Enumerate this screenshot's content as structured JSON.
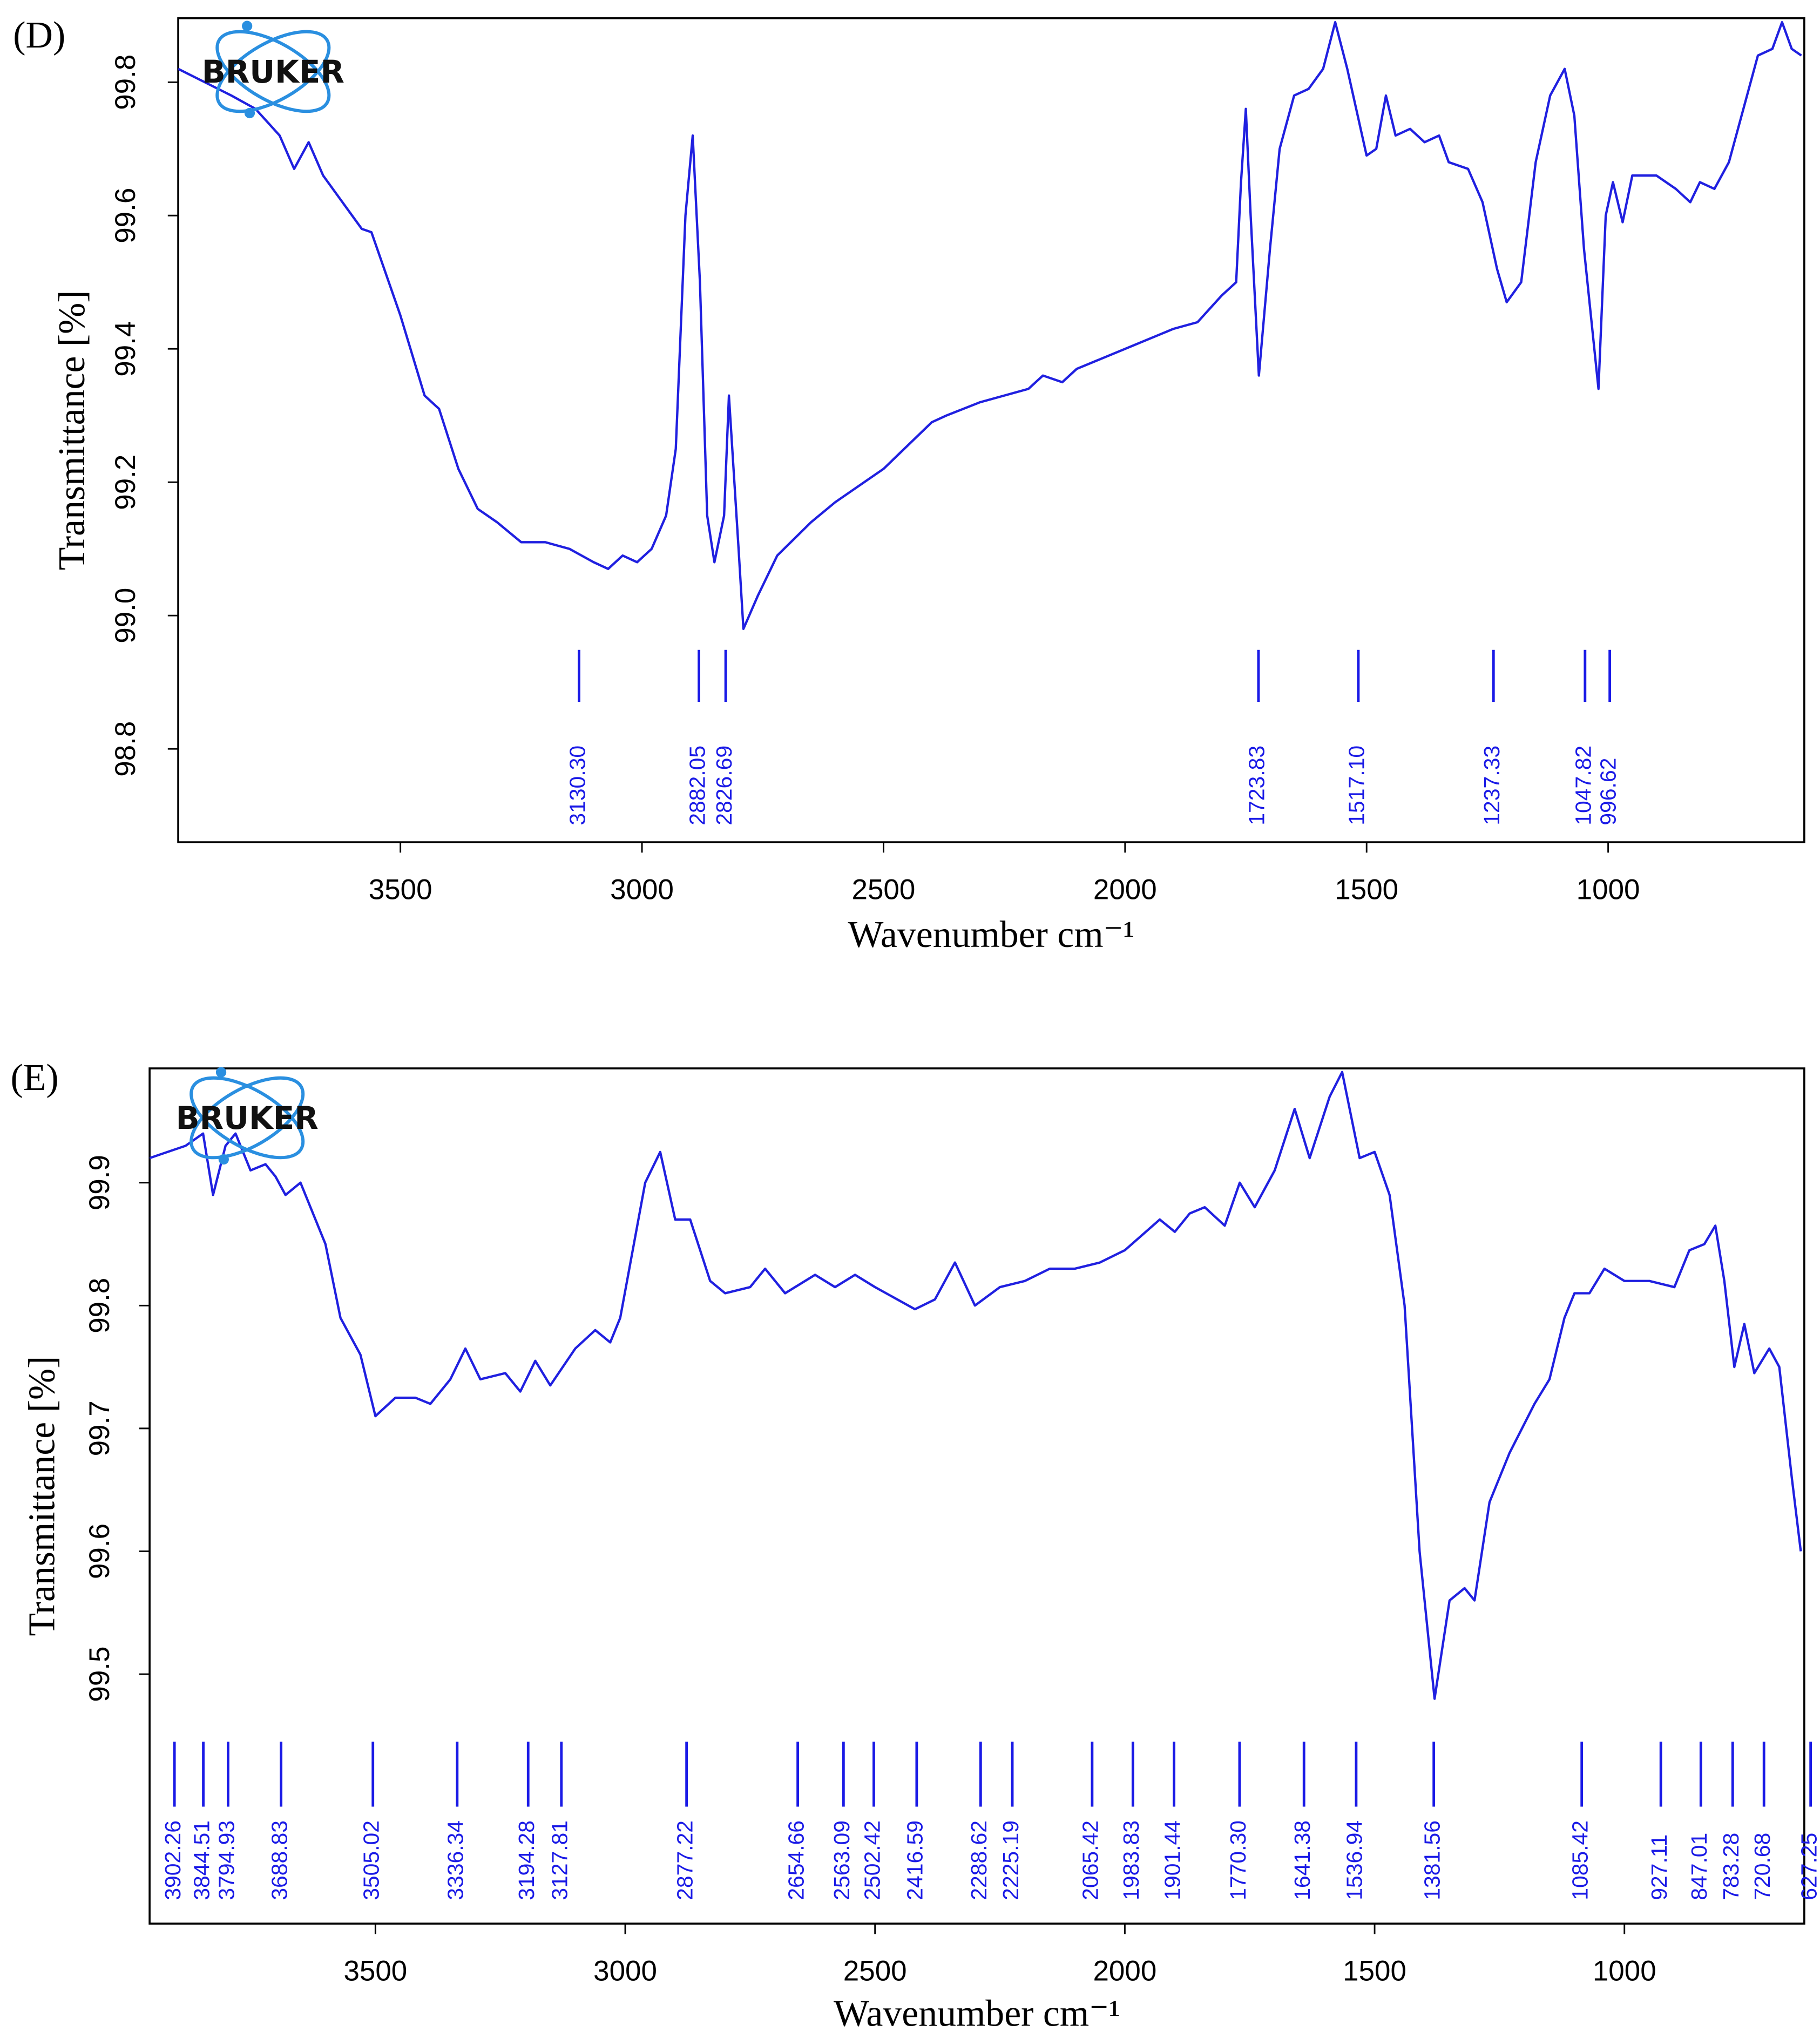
{
  "chart_data": [
    {
      "type": "line",
      "panel": "(D)",
      "logo_text": "BRUKER",
      "ylabel": "Transmittance [%]",
      "xlabel": "Wavenumber cm⁻¹",
      "xlim": [
        3960,
        594
      ],
      "ylim": [
        98.66,
        99.896
      ],
      "xticks": [
        3500,
        3000,
        2500,
        2000,
        1500,
        1000
      ],
      "yticks": [
        98.8,
        {
          "value": 99,
          "label": "99.0"
        },
        99.2,
        99.4,
        99.6,
        99.8
      ],
      "series": [
        {
          "color": "#2020e0",
          "x": [
            3960,
            3850,
            3800,
            3750,
            3720,
            3690,
            3660,
            3620,
            3580,
            3560,
            3500,
            3450,
            3420,
            3380,
            3340,
            3300,
            3250,
            3200,
            3150,
            3100,
            3070,
            3040,
            3010,
            2980,
            2950,
            2930,
            2910,
            2895,
            2880,
            2865,
            2850,
            2830,
            2820,
            2800,
            2790,
            2760,
            2720,
            2650,
            2600,
            2500,
            2400,
            2370,
            2300,
            2200,
            2170,
            2130,
            2100,
            2000,
            1900,
            1850,
            1800,
            1770,
            1760,
            1750,
            1740,
            1723,
            1700,
            1680,
            1650,
            1620,
            1590,
            1565,
            1540,
            1500,
            1480,
            1460,
            1440,
            1410,
            1380,
            1350,
            1330,
            1290,
            1260,
            1230,
            1210,
            1180,
            1150,
            1120,
            1090,
            1070,
            1050,
            1020,
            1005,
            990,
            970,
            950,
            900,
            860,
            830,
            810,
            780,
            750,
            720,
            690,
            660,
            640,
            620,
            600
          ],
          "values": [
            99.82,
            99.78,
            99.76,
            99.72,
            99.67,
            99.71,
            99.66,
            99.62,
            99.58,
            99.575,
            99.45,
            99.33,
            99.31,
            99.22,
            99.16,
            99.14,
            99.11,
            99.11,
            99.1,
            99.08,
            99.07,
            99.09,
            99.08,
            99.1,
            99.15,
            99.25,
            99.6,
            99.72,
            99.5,
            99.15,
            99.08,
            99.15,
            99.33,
            99.1,
            98.98,
            99.03,
            99.09,
            99.14,
            99.17,
            99.22,
            99.29,
            99.3,
            99.32,
            99.34,
            99.36,
            99.35,
            99.37,
            99.4,
            99.43,
            99.44,
            99.48,
            99.5,
            99.65,
            99.76,
            99.6,
            99.36,
            99.55,
            99.7,
            99.78,
            99.79,
            99.82,
            99.89,
            99.82,
            99.69,
            99.7,
            99.78,
            99.72,
            99.73,
            99.71,
            99.72,
            99.68,
            99.67,
            99.62,
            99.52,
            99.47,
            99.5,
            99.68,
            99.78,
            99.82,
            99.75,
            99.55,
            99.34,
            99.6,
            99.65,
            99.59,
            99.66,
            99.66,
            99.64,
            99.62,
            99.65,
            99.64,
            99.68,
            99.76,
            99.84,
            99.85,
            99.89,
            99.85,
            99.84
          ]
        }
      ],
      "peaks": [
        {
          "value": 3130.3,
          "label": "3130.30"
        },
        {
          "value": 2882.05,
          "label": "2882.05"
        },
        {
          "value": 2826.69,
          "label": "2826.69"
        },
        {
          "value": 1723.83,
          "label": "1723.83"
        },
        {
          "value": 1517.1,
          "label": "1517.10"
        },
        {
          "value": 1237.33,
          "label": "1237.33"
        },
        {
          "value": 1047.82,
          "label": "1047.82"
        },
        {
          "value": 996.62,
          "label": "996.62"
        }
      ]
    },
    {
      "type": "line",
      "panel": "(E)",
      "logo_text": "BRUKER",
      "ylabel": "Transmittance [%]",
      "xlabel": "Wavenumber cm⁻¹",
      "xlim": [
        3952,
        640
      ],
      "ylim": [
        99.297,
        99.993
      ],
      "xticks": [
        3500,
        3000,
        2500,
        2000,
        1500,
        1000
      ],
      "yticks": [
        99.5,
        99.6,
        99.7,
        99.8,
        99.9
      ],
      "series": [
        {
          "color": "#2020e0",
          "x": [
            3952,
            3880,
            3845,
            3825,
            3800,
            3780,
            3750,
            3720,
            3700,
            3680,
            3650,
            3600,
            3570,
            3530,
            3500,
            3460,
            3420,
            3390,
            3350,
            3320,
            3290,
            3240,
            3210,
            3180,
            3150,
            3100,
            3060,
            3030,
            3010,
            2960,
            2930,
            2900,
            2870,
            2830,
            2800,
            2750,
            2720,
            2680,
            2620,
            2580,
            2540,
            2500,
            2420,
            2380,
            2340,
            2300,
            2250,
            2200,
            2150,
            2100,
            2050,
            2000,
            1930,
            1900,
            1870,
            1840,
            1800,
            1770,
            1740,
            1700,
            1660,
            1630,
            1590,
            1565,
            1530,
            1500,
            1470,
            1440,
            1410,
            1380,
            1350,
            1320,
            1300,
            1270,
            1230,
            1180,
            1150,
            1120,
            1100,
            1070,
            1040,
            1000,
            950,
            900,
            870,
            840,
            818,
            800,
            780,
            760,
            740,
            710,
            690,
            665,
            647
          ],
          "values": [
            99.92,
            99.93,
            99.94,
            99.89,
            99.93,
            99.94,
            99.91,
            99.915,
            99.905,
            99.89,
            99.9,
            99.85,
            99.79,
            99.76,
            99.71,
            99.725,
            99.725,
            99.72,
            99.74,
            99.765,
            99.74,
            99.745,
            99.73,
            99.755,
            99.735,
            99.765,
            99.78,
            99.77,
            99.79,
            99.9,
            99.925,
            99.87,
            99.87,
            99.82,
            99.81,
            99.815,
            99.83,
            99.81,
            99.825,
            99.815,
            99.825,
            99.815,
            99.797,
            99.805,
            99.835,
            99.8,
            99.815,
            99.82,
            99.83,
            99.83,
            99.835,
            99.845,
            99.87,
            99.86,
            99.875,
            99.88,
            99.865,
            99.9,
            99.88,
            99.91,
            99.96,
            99.92,
            99.97,
            99.99,
            99.92,
            99.925,
            99.89,
            99.8,
            99.6,
            99.48,
            99.56,
            99.57,
            99.56,
            99.64,
            99.68,
            99.72,
            99.74,
            99.79,
            99.81,
            99.81,
            99.83,
            99.82,
            99.82,
            99.815,
            99.845,
            99.85,
            99.865,
            99.82,
            99.75,
            99.785,
            99.745,
            99.765,
            99.75,
            99.66,
            99.6
          ]
        }
      ],
      "peaks": [
        {
          "value": 3902.26,
          "label": "3902.26"
        },
        {
          "value": 3844.51,
          "label": "3844.51"
        },
        {
          "value": 3794.93,
          "label": "3794.93"
        },
        {
          "value": 3688.83,
          "label": "3688.83"
        },
        {
          "value": 3505.02,
          "label": "3505.02"
        },
        {
          "value": 3336.34,
          "label": "3336.34"
        },
        {
          "value": 3194.28,
          "label": "3194.28"
        },
        {
          "value": 3127.81,
          "label": "3127.81"
        },
        {
          "value": 2877.22,
          "label": "2877.22"
        },
        {
          "value": 2654.66,
          "label": "2654.66"
        },
        {
          "value": 2563.09,
          "label": "2563.09"
        },
        {
          "value": 2502.42,
          "label": "2502.42"
        },
        {
          "value": 2416.59,
          "label": "2416.59"
        },
        {
          "value": 2288.62,
          "label": "2288.62"
        },
        {
          "value": 2225.19,
          "label": "2225.19"
        },
        {
          "value": 2065.42,
          "label": "2065.42"
        },
        {
          "value": 1983.83,
          "label": "1983.83"
        },
        {
          "value": 1901.44,
          "label": "1901.44"
        },
        {
          "value": 1770.3,
          "label": "1770.30"
        },
        {
          "value": 1641.38,
          "label": "1641.38"
        },
        {
          "value": 1536.94,
          "label": "1536.94"
        },
        {
          "value": 1381.56,
          "label": "1381.56"
        },
        {
          "value": 1085.42,
          "label": "1085.42"
        },
        {
          "value": 927.11,
          "label": "927.11"
        },
        {
          "value": 847.01,
          "label": "847.01"
        },
        {
          "value": 783.28,
          "label": "783.28"
        },
        {
          "value": 720.68,
          "label": "720.68"
        },
        {
          "value": 627.25,
          "label": "627.25"
        }
      ]
    }
  ]
}
